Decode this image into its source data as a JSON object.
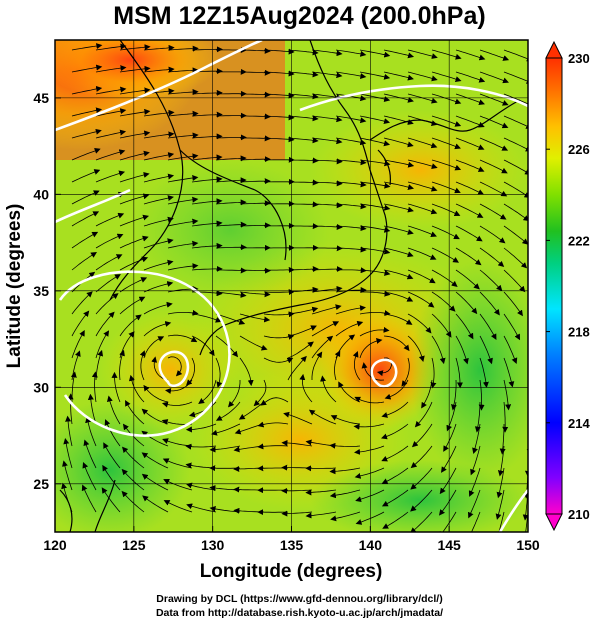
{
  "title": "MSM 12Z15Aug2024 (200.0hPa)",
  "x_axis": {
    "label": "Longitude (degrees)",
    "ticks": [
      "120",
      "125",
      "130",
      "135",
      "140",
      "145",
      "150"
    ]
  },
  "y_axis": {
    "label": "Latitude  (degrees)",
    "ticks": [
      "25",
      "30",
      "35",
      "40",
      "45"
    ]
  },
  "colorbar": {
    "ticks": [
      "230",
      "226",
      "222",
      "218",
      "214",
      "210"
    ],
    "min": 210,
    "max": 230,
    "colors": [
      "#ff00cc",
      "#8000ff",
      "#0000ff",
      "#0080ff",
      "#00e5ff",
      "#00d080",
      "#20c020",
      "#80e000",
      "#e0f000",
      "#ffc000",
      "#ff7000",
      "#ff3000"
    ]
  },
  "map": {
    "lon_range": [
      120,
      150
    ],
    "lat_range": [
      22.5,
      48
    ],
    "grid_lons": [
      120,
      125,
      130,
      135,
      140,
      145,
      150
    ],
    "grid_lats": [
      25,
      30,
      35,
      40,
      45
    ],
    "vortex_centers": [
      {
        "lon": 127.3,
        "lat": 31.2
      },
      {
        "lon": 140.9,
        "lat": 31.3
      }
    ]
  },
  "credits": [
    "Drawing by DCL (https://www.gfd-dennou.org/library/dcl/)",
    "Data from http://database.rish.kyoto-u.ac.jp/arch/jmadata/"
  ]
}
